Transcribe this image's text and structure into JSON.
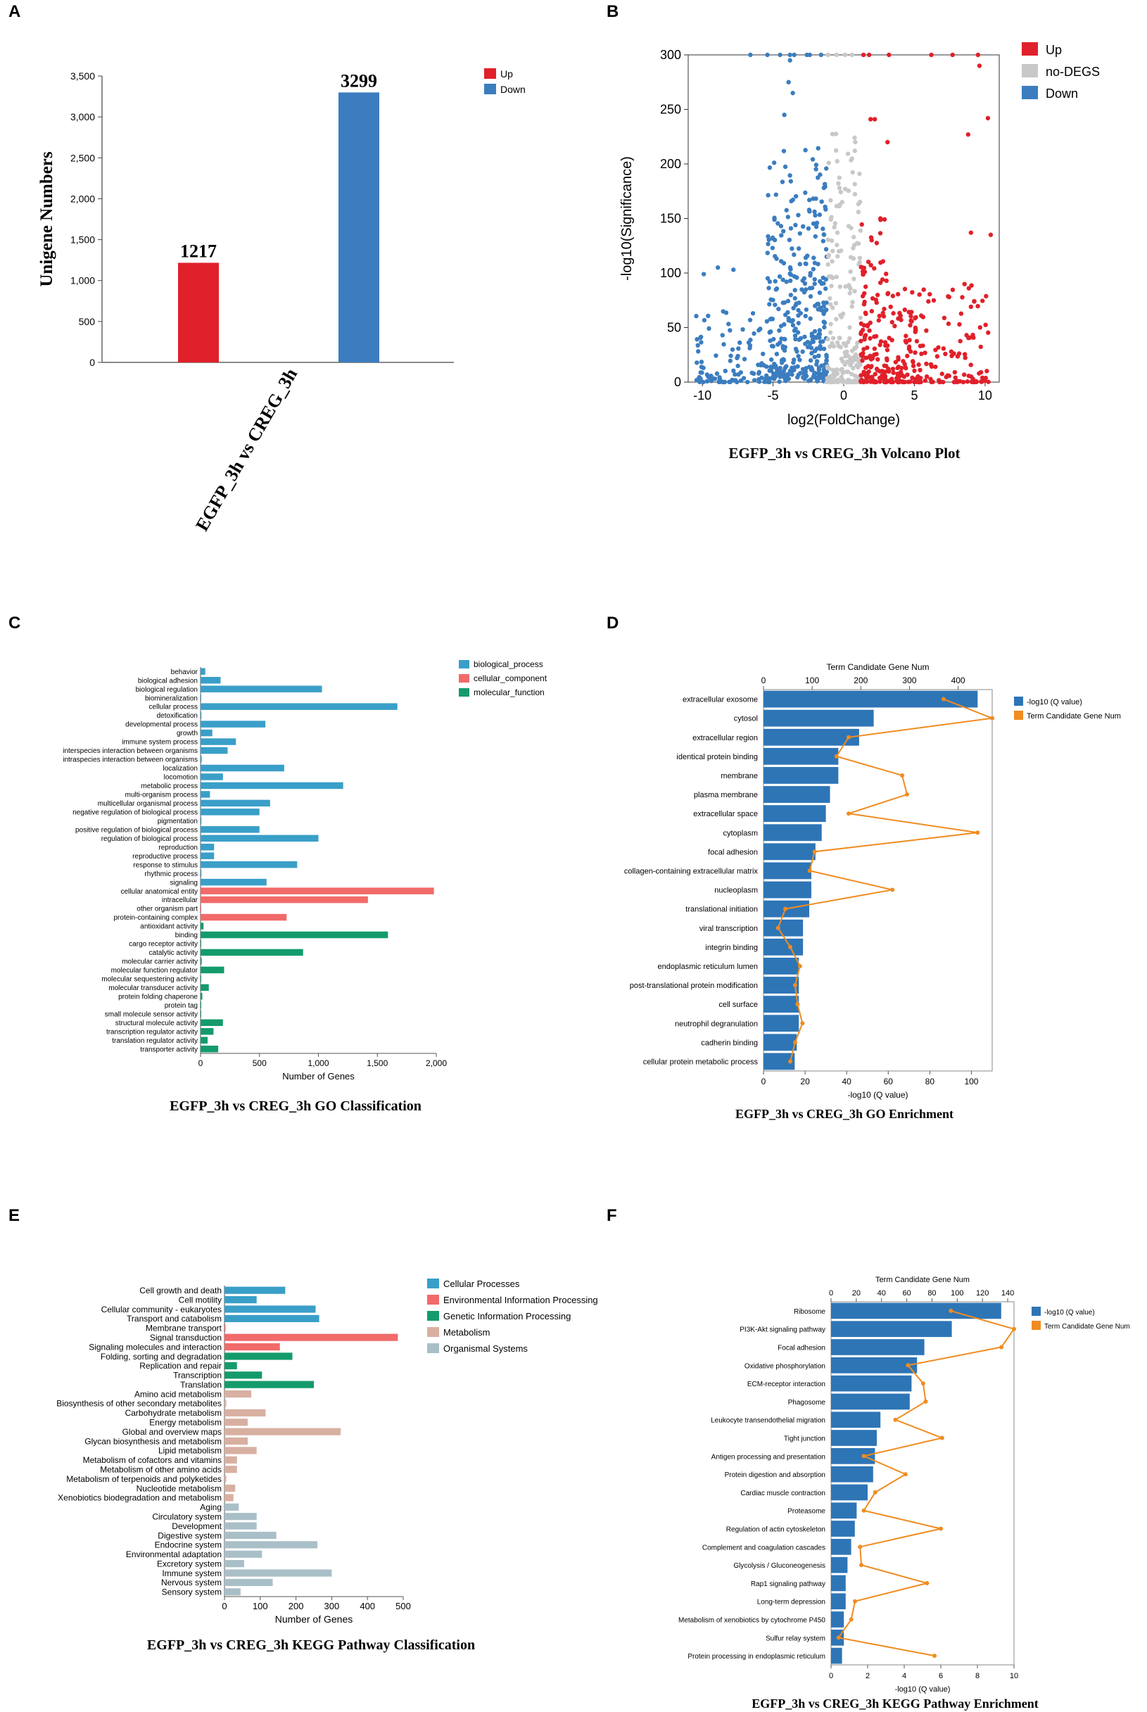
{
  "colors": {
    "up": "#e0202a",
    "down": "#3b7dbf",
    "nodegs": "#c8c8c8",
    "bp": "#3a9fc8",
    "cc": "#f26a6a",
    "mf": "#149b6b",
    "kegg_cp": "#3a9fc8",
    "kegg_eip": "#f26a6a",
    "kegg_gip": "#149b6b",
    "kegg_met": "#d8b0a2",
    "kegg_org": "#a9bfc8",
    "enrich_bar": "#2e75b6",
    "enrich_line": "#f08c20"
  },
  "panels": {
    "A": "A",
    "B": "B",
    "C": "C",
    "D": "D",
    "E": "E",
    "F": "F"
  },
  "chart_data": [
    {
      "type": "bar",
      "id": "A",
      "ylabel": "Unigene Numbers",
      "xlabel": "EGFP_3h vs CREG_3h",
      "ylim": [
        0,
        3500
      ],
      "yticks": [
        "0",
        "500",
        "1,000",
        "1,500",
        "2,000",
        "2,500",
        "3,000",
        "3,500"
      ],
      "series": [
        {
          "name": "Up",
          "value": 1217,
          "label": "1217"
        },
        {
          "name": "Down",
          "value": 3299,
          "label": "3299"
        }
      ],
      "legend": [
        "Up",
        "Down"
      ]
    },
    {
      "type": "scatter",
      "id": "B",
      "title": "EGFP_3h vs CREG_3h Volcano Plot",
      "xlabel": "log2(FoldChange)",
      "ylabel": "-log10(Significance)",
      "xlim": [
        -11,
        11
      ],
      "ylim": [
        0,
        300
      ],
      "xticks": [
        -10,
        -5,
        0,
        5,
        10
      ],
      "yticks": [
        0,
        50,
        100,
        150,
        200,
        250,
        300
      ],
      "legend": [
        "Up",
        "no-DEGS",
        "Down"
      ],
      "capped_points_x": [
        -6.6,
        -5.4,
        -4.5,
        -3.8,
        -3.5,
        -2.6,
        -2.4,
        -1.6,
        -1.1,
        -0.5,
        0.1,
        0.6,
        1.4,
        1.8,
        3.2,
        6.2,
        7.7,
        9.5
      ],
      "outlier_points": [
        {
          "x": 9.6,
          "y": 290,
          "g": "up"
        },
        {
          "x": 10.2,
          "y": 242,
          "g": "up"
        },
        {
          "x": 1.9,
          "y": 241,
          "g": "up"
        },
        {
          "x": 2.2,
          "y": 241,
          "g": "up"
        },
        {
          "x": 8.8,
          "y": 227,
          "g": "up"
        },
        {
          "x": 3.1,
          "y": 220,
          "g": "up"
        },
        {
          "x": 10.4,
          "y": 135,
          "g": "up"
        },
        {
          "x": 9.0,
          "y": 137,
          "g": "up"
        },
        {
          "x": 2.6,
          "y": 150,
          "g": "up"
        },
        {
          "x": -3.8,
          "y": 295,
          "g": "down"
        },
        {
          "x": -3.9,
          "y": 275,
          "g": "down"
        },
        {
          "x": -3.6,
          "y": 265,
          "g": "down"
        },
        {
          "x": -4.2,
          "y": 245,
          "g": "down"
        },
        {
          "x": -9.9,
          "y": 99,
          "g": "down"
        },
        {
          "x": -8.9,
          "y": 105,
          "g": "down"
        },
        {
          "x": -7.8,
          "y": 103,
          "g": "down"
        }
      ]
    },
    {
      "type": "bar",
      "id": "C",
      "orientation": "horizontal",
      "title": "EGFP_3h vs CREG_3h GO Classification",
      "xlabel": "Number of Genes",
      "xlim": [
        0,
        2000
      ],
      "xticks": [
        "0",
        "500",
        "1,000",
        "1,500",
        "2,000"
      ],
      "legend": [
        "biological_process",
        "cellular_component",
        "molecular_function"
      ],
      "categories": [
        "behavior",
        "biological adhesion",
        "biological regulation",
        "biomineralization",
        "cellular process",
        "detoxification",
        "developmental process",
        "growth",
        "immune system process",
        "interspecies interaction between organisms",
        "intraspecies interaction between organisms",
        "localization",
        "locomotion",
        "metabolic process",
        "multi-organism process",
        "multicellular organismal process",
        "negative regulation of biological process",
        "pigmentation",
        "positive regulation of biological process",
        "regulation of biological process",
        "reproduction",
        "reproductive process",
        "response to stimulus",
        "rhythmic process",
        "signaling",
        "cellular anatomical entity",
        "intracellular",
        "other organism part",
        "protein-containing complex",
        "antioxidant activity",
        "binding",
        "cargo receptor activity",
        "catalytic activity",
        "molecular carrier activity",
        "molecular function regulator",
        "molecular sequestering activity",
        "molecular transducer activity",
        "protein folding chaperone",
        "protein tag",
        "small molecule sensor activity",
        "structural molecule activity",
        "transcription regulator activity",
        "translation regulator activity",
        "transporter activity"
      ],
      "values": [
        40,
        170,
        1030,
        3,
        1670,
        8,
        550,
        100,
        300,
        230,
        10,
        710,
        190,
        1210,
        80,
        590,
        500,
        8,
        500,
        1000,
        115,
        115,
        820,
        8,
        560,
        1980,
        1420,
        5,
        730,
        25,
        1590,
        5,
        870,
        10,
        200,
        5,
        70,
        15,
        3,
        3,
        190,
        110,
        60,
        150
      ],
      "groups": [
        "bp",
        "bp",
        "bp",
        "bp",
        "bp",
        "bp",
        "bp",
        "bp",
        "bp",
        "bp",
        "bp",
        "bp",
        "bp",
        "bp",
        "bp",
        "bp",
        "bp",
        "bp",
        "bp",
        "bp",
        "bp",
        "bp",
        "bp",
        "bp",
        "bp",
        "cc",
        "cc",
        "cc",
        "cc",
        "mf",
        "mf",
        "mf",
        "mf",
        "mf",
        "mf",
        "mf",
        "mf",
        "mf",
        "mf",
        "mf",
        "mf",
        "mf",
        "mf",
        "mf"
      ]
    },
    {
      "type": "bar+line",
      "id": "D",
      "title": "EGFP_3h vs CREG_3h GO Enrichment",
      "xlabel": "-log10 (Q value)",
      "top_xlabel": "Term Candidate Gene Num",
      "xlim": [
        0,
        110
      ],
      "xticks": [
        0,
        20,
        40,
        60,
        80,
        100
      ],
      "top_xlim": [
        0,
        470
      ],
      "top_xticks": [
        0,
        100,
        200,
        300,
        400
      ],
      "legend": [
        "-log10 (Q value)",
        "Term Candidate Gene Num"
      ],
      "categories": [
        "extracellular exosome",
        "cytosol",
        "extracellular region",
        "identical protein binding",
        "membrane",
        "plasma membrane",
        "extracellular space",
        "cytoplasm",
        "focal adhesion",
        "collagen-containing extracellular matrix",
        "nucleoplasm",
        "translational initiation",
        "viral transcription",
        "integrin binding",
        "endoplasmic reticulum lumen",
        "post-translational protein modification",
        "cell surface",
        "neutrophil degranulation",
        "cadherin binding",
        "cellular protein metabolic process"
      ],
      "bar_values": [
        103,
        53,
        46,
        36,
        36,
        32,
        30,
        28,
        25,
        23,
        23,
        22,
        19,
        19,
        17,
        17,
        17,
        17,
        16,
        15
      ],
      "line_values": [
        370,
        470,
        175,
        150,
        285,
        295,
        175,
        440,
        105,
        95,
        265,
        45,
        30,
        55,
        75,
        65,
        70,
        80,
        65,
        55
      ]
    },
    {
      "type": "bar",
      "id": "E",
      "orientation": "horizontal",
      "title": "EGFP_3h vs CREG_3h KEGG Pathway  Classification",
      "xlabel": "Number of Genes",
      "xlim": [
        0,
        500
      ],
      "xticks": [
        "0",
        "100",
        "200",
        "300",
        "400",
        "500"
      ],
      "legend": [
        "Cellular Processes",
        "Environmental Information Processing",
        "Genetic Information Processing",
        "Metabolism",
        "Organismal Systems"
      ],
      "categories": [
        "Cell growth and death",
        "Cell motility",
        "Cellular community - eukaryotes",
        "Transport and catabolism",
        "Membrane transport",
        "Signal transduction",
        "Signaling molecules and interaction",
        "Folding, sorting and degradation",
        "Replication and repair",
        "Transcription",
        "Translation",
        "Amino acid metabolism",
        "Biosynthesis of other secondary metabolites",
        "Carbohydrate metabolism",
        "Energy metabolism",
        "Global and overview maps",
        "Glycan biosynthesis and metabolism",
        "Lipid metabolism",
        "Metabolism of cofactors and vitamins",
        "Metabolism of other amino acids",
        "Metabolism of terpenoids and polyketides",
        "Nucleotide metabolism",
        "Xenobiotics biodegradation and metabolism",
        "Aging",
        "Circulatory system",
        "Development",
        "Digestive system",
        "Endocrine system",
        "Environmental adaptation",
        "Excretory system",
        "Immune system",
        "Nervous system",
        "Sensory system"
      ],
      "values": [
        170,
        90,
        255,
        265,
        3,
        485,
        155,
        190,
        35,
        105,
        250,
        75,
        5,
        115,
        65,
        325,
        65,
        90,
        35,
        35,
        5,
        30,
        25,
        40,
        90,
        90,
        145,
        260,
        105,
        55,
        300,
        135,
        45
      ],
      "groups": [
        "cp",
        "cp",
        "cp",
        "cp",
        "eip",
        "eip",
        "eip",
        "gip",
        "gip",
        "gip",
        "gip",
        "met",
        "met",
        "met",
        "met",
        "met",
        "met",
        "met",
        "met",
        "met",
        "met",
        "met",
        "met",
        "org",
        "org",
        "org",
        "org",
        "org",
        "org",
        "org",
        "org",
        "org",
        "org"
      ]
    },
    {
      "type": "bar+line",
      "id": "F",
      "title": "EGFP_3h vs CREG_3h KEGG Pathway Enrichment",
      "xlabel": "-log10 (Q value)",
      "top_xlabel": "Term Candidate Gene Num",
      "xlim": [
        0,
        10
      ],
      "xticks": [
        0,
        2,
        4,
        6,
        8,
        10
      ],
      "top_xlim": [
        0,
        145
      ],
      "top_xticks": [
        0,
        20,
        40,
        60,
        80,
        100,
        120,
        140
      ],
      "legend": [
        "-log10 (Q value)",
        "Term Candidate Gene Num"
      ],
      "categories": [
        "Ribosome",
        "PI3K-Akt signaling pathway",
        "Focal adhesion",
        "Oxidative phosphorylation",
        "ECM-receptor interaction",
        "Phagosome",
        "Leukocyte transendothelial migration",
        "Tight junction",
        "Antigen processing and presentation",
        "Protein digestion and absorption",
        "Cardiac muscle contraction",
        "Proteasome",
        "Regulation of actin cytoskeleton",
        "Complement and coagulation cascades",
        "Glycolysis / Gluconeogenesis",
        "Rap1 signaling pathway",
        "Long-term depression",
        "Metabolism of xenobiotics by cytochrome P450",
        "Sulfur relay system",
        "Protein processing in endoplasmic reticulum"
      ],
      "bar_values": [
        9.3,
        6.6,
        5.1,
        4.7,
        4.4,
        4.3,
        2.7,
        2.5,
        2.4,
        2.3,
        2.0,
        1.4,
        1.3,
        1.1,
        0.9,
        0.8,
        0.8,
        0.7,
        0.7,
        0.6
      ],
      "line_values": [
        95,
        145,
        135,
        61,
        73,
        75,
        51,
        88,
        26,
        59,
        35,
        26,
        87,
        23,
        24,
        76,
        19,
        16,
        6,
        82
      ]
    }
  ]
}
